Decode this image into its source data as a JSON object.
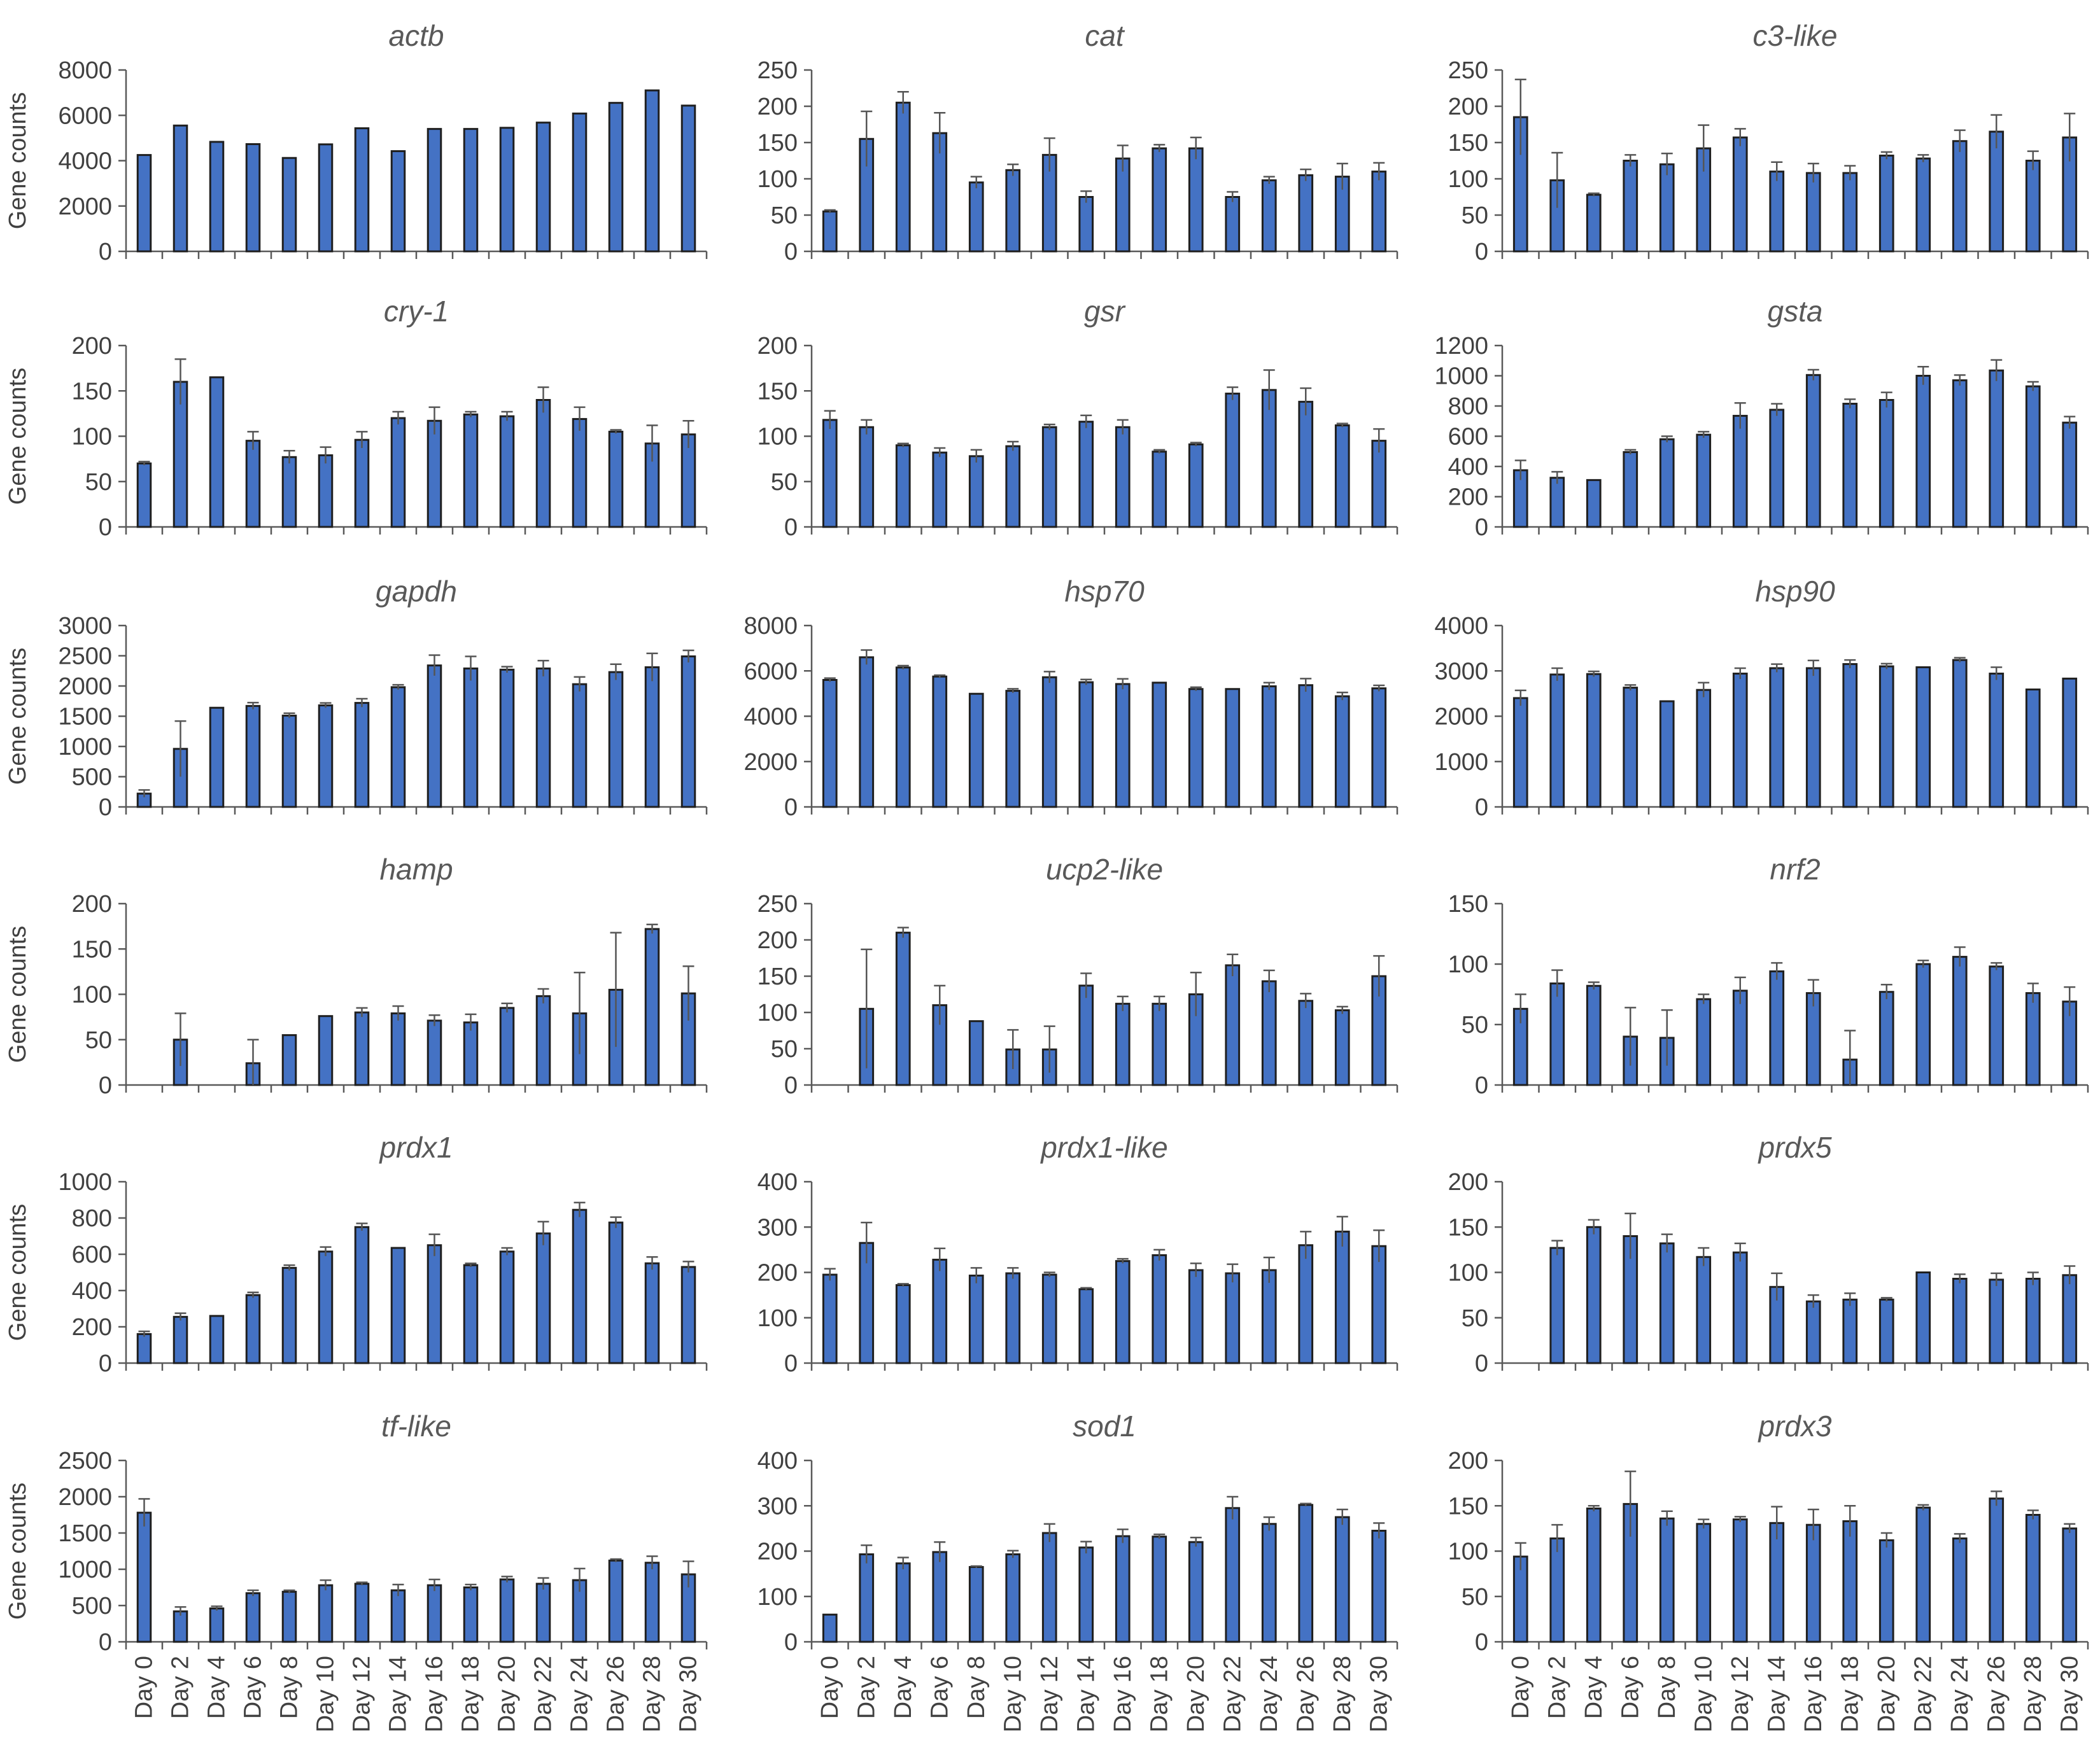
{
  "chart_data": [
    {
      "type": "bar",
      "title": "actb",
      "ylabel": "Gene counts",
      "ylim": [
        0,
        8000
      ],
      "yticks": [
        0,
        2000,
        4000,
        6000,
        8000
      ],
      "values": [
        4250,
        5550,
        4830,
        4730,
        4120,
        4720,
        5430,
        4420,
        5400,
        5400,
        5450,
        5680,
        6080,
        6550,
        7100,
        6430
      ],
      "errors": [
        0,
        0,
        0,
        0,
        0,
        0,
        0,
        0,
        0,
        0,
        0,
        0,
        0,
        0,
        0,
        0
      ]
    },
    {
      "type": "bar",
      "title": "cat",
      "ylabel": "",
      "ylim": [
        0,
        250
      ],
      "yticks": [
        0,
        50,
        100,
        150,
        200,
        250
      ],
      "values": [
        55,
        155,
        205,
        163,
        95,
        112,
        133,
        75,
        128,
        142,
        142,
        75,
        98,
        105,
        103,
        110
      ],
      "errors": [
        2,
        38,
        15,
        28,
        8,
        8,
        23,
        8,
        18,
        5,
        15,
        7,
        5,
        8,
        18,
        12
      ]
    },
    {
      "type": "bar",
      "title": "c3-like",
      "ylabel": "",
      "ylim": [
        0,
        250
      ],
      "yticks": [
        0,
        50,
        100,
        150,
        200,
        250
      ],
      "values": [
        185,
        98,
        78,
        125,
        120,
        142,
        157,
        110,
        108,
        108,
        132,
        128,
        152,
        165,
        125,
        157
      ],
      "errors": [
        52,
        38,
        2,
        8,
        15,
        32,
        12,
        13,
        13,
        10,
        5,
        5,
        15,
        23,
        13,
        33
      ]
    },
    {
      "type": "bar",
      "title": "cry-1",
      "ylabel": "Gene counts",
      "ylim": [
        0,
        200
      ],
      "yticks": [
        0,
        50,
        100,
        150,
        200
      ],
      "values": [
        70,
        160,
        165,
        95,
        77,
        79,
        96,
        120,
        117,
        124,
        122,
        140,
        119,
        105,
        92,
        102
      ],
      "errors": [
        2,
        25,
        0,
        10,
        7,
        9,
        9,
        7,
        15,
        3,
        5,
        14,
        13,
        2,
        20,
        15
      ]
    },
    {
      "type": "bar",
      "title": "gsr",
      "ylabel": "",
      "ylim": [
        0,
        200
      ],
      "yticks": [
        0,
        50,
        100,
        150,
        200
      ],
      "values": [
        118,
        110,
        90,
        82,
        78,
        89,
        110,
        116,
        110,
        83,
        91,
        147,
        151,
        138,
        112,
        95
      ],
      "errors": [
        10,
        8,
        2,
        5,
        7,
        5,
        3,
        7,
        8,
        2,
        2,
        7,
        22,
        15,
        2,
        13
      ]
    },
    {
      "type": "bar",
      "title": "gsta",
      "ylabel": "",
      "ylim": [
        0,
        1200
      ],
      "yticks": [
        0,
        200,
        400,
        600,
        800,
        1000,
        1200
      ],
      "values": [
        375,
        325,
        310,
        495,
        580,
        610,
        735,
        775,
        1005,
        815,
        840,
        1000,
        970,
        1035,
        930,
        690
      ],
      "errors": [
        65,
        40,
        0,
        15,
        20,
        20,
        85,
        40,
        35,
        30,
        50,
        60,
        35,
        70,
        30,
        40
      ]
    },
    {
      "type": "bar",
      "title": "gapdh",
      "ylabel": "Gene counts",
      "ylim": [
        0,
        3000
      ],
      "yticks": [
        0,
        500,
        1000,
        1500,
        2000,
        2500,
        3000
      ],
      "values": [
        220,
        960,
        1640,
        1670,
        1510,
        1680,
        1720,
        1980,
        2340,
        2290,
        2270,
        2290,
        2030,
        2230,
        2310,
        2490
      ],
      "errors": [
        60,
        460,
        0,
        55,
        40,
        40,
        70,
        40,
        170,
        200,
        50,
        130,
        120,
        130,
        230,
        100
      ]
    },
    {
      "type": "bar",
      "title": "hsp70",
      "ylabel": "",
      "ylim": [
        0,
        8000
      ],
      "yticks": [
        0,
        2000,
        4000,
        6000,
        8000
      ],
      "values": [
        5600,
        6600,
        6150,
        5750,
        4990,
        5120,
        5720,
        5500,
        5420,
        5480,
        5200,
        5200,
        5320,
        5370,
        4880,
        5230
      ],
      "errors": [
        80,
        320,
        80,
        60,
        0,
        90,
        250,
        120,
        230,
        0,
        80,
        0,
        160,
        290,
        170,
        130
      ]
    },
    {
      "type": "bar",
      "title": "hsp90",
      "ylabel": "",
      "ylim": [
        0,
        4000
      ],
      "yticks": [
        0,
        1000,
        2000,
        3000,
        4000
      ],
      "values": [
        2400,
        2920,
        2930,
        2630,
        2330,
        2580,
        2940,
        3060,
        3060,
        3150,
        3100,
        3080,
        3240,
        2940,
        2590,
        2830
      ],
      "errors": [
        170,
        140,
        60,
        60,
        0,
        160,
        120,
        90,
        170,
        90,
        60,
        0,
        50,
        140,
        0,
        0
      ]
    },
    {
      "type": "bar",
      "title": "hamp",
      "ylabel": "Gene counts",
      "ylim": [
        0,
        200
      ],
      "yticks": [
        0,
        50,
        100,
        150,
        200
      ],
      "values": [
        0,
        50,
        0,
        24,
        55,
        76,
        80,
        79,
        71,
        69,
        85,
        98,
        79,
        105,
        172,
        101
      ],
      "errors": [
        0,
        29,
        0,
        26,
        0,
        0,
        5,
        8,
        6,
        9,
        5,
        8,
        45,
        63,
        5,
        30
      ]
    },
    {
      "type": "bar",
      "title": "ucp2-like",
      "ylabel": "",
      "ylim": [
        0,
        250
      ],
      "yticks": [
        0,
        50,
        100,
        150,
        200,
        250
      ],
      "values": [
        0,
        105,
        210,
        110,
        88,
        49,
        49,
        137,
        112,
        112,
        125,
        165,
        143,
        116,
        103,
        150
      ],
      "errors": [
        0,
        82,
        7,
        27,
        0,
        27,
        32,
        17,
        10,
        10,
        30,
        15,
        15,
        10,
        5,
        28
      ]
    },
    {
      "type": "bar",
      "title": "nrf2",
      "ylabel": "",
      "ylim": [
        0,
        150
      ],
      "yticks": [
        0,
        50,
        100,
        150
      ],
      "values": [
        63,
        84,
        82,
        40,
        39,
        71,
        78,
        94,
        76,
        21,
        77,
        100,
        106,
        98,
        76,
        69
      ],
      "errors": [
        12,
        11,
        3,
        24,
        23,
        4,
        11,
        7,
        11,
        24,
        6,
        3,
        8,
        3,
        8,
        12
      ]
    },
    {
      "type": "bar",
      "title": "prdx1",
      "ylabel": "Gene counts",
      "ylim": [
        0,
        1000
      ],
      "yticks": [
        0,
        200,
        400,
        600,
        800,
        1000
      ],
      "values": [
        160,
        255,
        260,
        375,
        525,
        615,
        750,
        635,
        650,
        540,
        615,
        715,
        845,
        775,
        550,
        530
      ],
      "errors": [
        15,
        20,
        0,
        15,
        15,
        25,
        20,
        0,
        60,
        10,
        20,
        65,
        40,
        30,
        35,
        30
      ]
    },
    {
      "type": "bar",
      "title": "prdx1-like",
      "ylabel": "",
      "ylim": [
        0,
        400
      ],
      "yticks": [
        0,
        100,
        200,
        300,
        400
      ],
      "values": [
        195,
        265,
        172,
        228,
        193,
        198,
        195,
        163,
        225,
        238,
        205,
        198,
        205,
        260,
        290,
        258
      ],
      "errors": [
        13,
        45,
        3,
        25,
        17,
        12,
        5,
        3,
        5,
        12,
        15,
        20,
        28,
        30,
        33,
        35
      ]
    },
    {
      "type": "bar",
      "title": "prdx5",
      "ylabel": "",
      "ylim": [
        0,
        200
      ],
      "yticks": [
        0,
        50,
        100,
        150,
        200
      ],
      "values": [
        0,
        127,
        150,
        140,
        132,
        117,
        122,
        84,
        68,
        70,
        70,
        100,
        93,
        92,
        93,
        97
      ],
      "errors": [
        0,
        8,
        8,
        25,
        10,
        10,
        10,
        15,
        7,
        7,
        2,
        0,
        5,
        7,
        7,
        10
      ]
    },
    {
      "type": "bar",
      "title": "tf-like",
      "ylabel": "Gene counts",
      "ylim": [
        0,
        2500
      ],
      "yticks": [
        0,
        500,
        1000,
        1500,
        2000,
        2500
      ],
      "values": [
        1780,
        420,
        460,
        670,
        690,
        780,
        800,
        710,
        780,
        750,
        860,
        800,
        850,
        1120,
        1090,
        930
      ],
      "errors": [
        190,
        60,
        30,
        40,
        20,
        70,
        20,
        80,
        80,
        40,
        40,
        80,
        160,
        20,
        90,
        180
      ]
    },
    {
      "type": "bar",
      "title": "sod1",
      "ylabel": "",
      "ylim": [
        0,
        400
      ],
      "yticks": [
        0,
        100,
        200,
        300,
        400
      ],
      "values": [
        60,
        193,
        173,
        198,
        165,
        193,
        240,
        208,
        233,
        232,
        220,
        295,
        260,
        302,
        275,
        245
      ],
      "errors": [
        0,
        20,
        13,
        22,
        2,
        8,
        20,
        13,
        15,
        5,
        10,
        25,
        15,
        3,
        17,
        17
      ]
    },
    {
      "type": "bar",
      "title": "prdx3",
      "ylabel": "",
      "ylim": [
        0,
        200
      ],
      "yticks": [
        0,
        50,
        100,
        150,
        200
      ],
      "values": [
        94,
        114,
        147,
        152,
        136,
        130,
        135,
        131,
        129,
        133,
        112,
        148,
        114,
        158,
        140,
        125
      ],
      "errors": [
        15,
        15,
        3,
        36,
        8,
        5,
        3,
        18,
        17,
        17,
        8,
        3,
        5,
        8,
        5,
        5
      ]
    }
  ],
  "categories": [
    "Day 0",
    "Day 2",
    "Day 4",
    "Day 6",
    "Day 8",
    "Day 10",
    "Day 12",
    "Day 14",
    "Day 16",
    "Day 18",
    "Day 20",
    "Day 22",
    "Day 24",
    "Day 26",
    "Day 28",
    "Day 30"
  ],
  "colors": {
    "bar_fill": "#4472C4",
    "bar_edge": "#1f1f1f",
    "error_bar": "#555555",
    "axis": "#595959",
    "text": "#404040"
  }
}
